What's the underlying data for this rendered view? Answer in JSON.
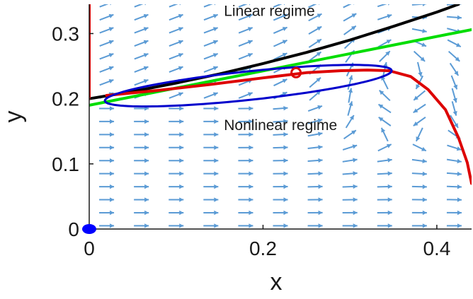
{
  "chart_data": {
    "type": "line",
    "xlabel": "x",
    "ylabel": "y",
    "xlim": [
      0,
      0.44
    ],
    "ylim": [
      0,
      0.345
    ],
    "x_ticks": [
      0,
      0.2,
      0.4
    ],
    "x_tick_labels": [
      "0",
      "0.2",
      "0.4"
    ],
    "y_ticks": [
      0,
      0.1,
      0.2,
      0.3
    ],
    "y_tick_labels": [
      "0",
      "0.1",
      "0.2",
      "0.3"
    ],
    "grid": false,
    "legend": "none",
    "annotations": [
      {
        "text": "Linear regime",
        "x": 0.155,
        "y": 0.327
      },
      {
        "text": "Nonlinear regime",
        "x": 0.155,
        "y": 0.152
      }
    ],
    "series": [
      {
        "color": "#000000",
        "points": [
          [
            0,
            0.2
          ],
          [
            0.05,
            0.211
          ],
          [
            0.1,
            0.224
          ],
          [
            0.15,
            0.238
          ],
          [
            0.2,
            0.254
          ],
          [
            0.25,
            0.271
          ],
          [
            0.3,
            0.29
          ],
          [
            0.35,
            0.311
          ],
          [
            0.4,
            0.333
          ],
          [
            0.425,
            0.345
          ]
        ]
      },
      {
        "color": "#00dd00",
        "points": [
          [
            0,
            0.19
          ],
          [
            0.44,
            0.306
          ]
        ]
      },
      {
        "color": "#dd0000",
        "points": [
          [
            0.02,
            0.205
          ],
          [
            0.08,
            0.213
          ],
          [
            0.14,
            0.222
          ],
          [
            0.2,
            0.232
          ],
          [
            0.25,
            0.24
          ],
          [
            0.29,
            0.243
          ],
          [
            0.32,
            0.244
          ],
          [
            0.345,
            0.243
          ],
          [
            0.37,
            0.234
          ],
          [
            0.39,
            0.214
          ],
          [
            0.41,
            0.183
          ],
          [
            0.425,
            0.14
          ],
          [
            0.435,
            0.102
          ],
          [
            0.44,
            0.07
          ]
        ]
      },
      {
        "color": "#dd0000",
        "points": [
          [
            0,
            0.345
          ],
          [
            0,
            0.2
          ]
        ]
      },
      {
        "color": "#0000cc",
        "ellipse": {
          "center": [
            0.183,
            0.22
          ],
          "rx": 0.165,
          "ry": 0.022,
          "tilt_y_per_x": 0.14
        }
      }
    ],
    "markers": [
      {
        "shape": "open-circle",
        "color": "#dd0000",
        "x": 0.238,
        "y": 0.24
      },
      {
        "shape": "filled-circle",
        "color": "#0000ff",
        "x": 0,
        "y": 0
      }
    ],
    "vector_field": {
      "color": "#5b9bd5",
      "x_start": 0.02,
      "x_step": 0.04,
      "x_count": 11,
      "y_start": 0.005,
      "y_step": 0.02,
      "y_count": 18
    }
  }
}
